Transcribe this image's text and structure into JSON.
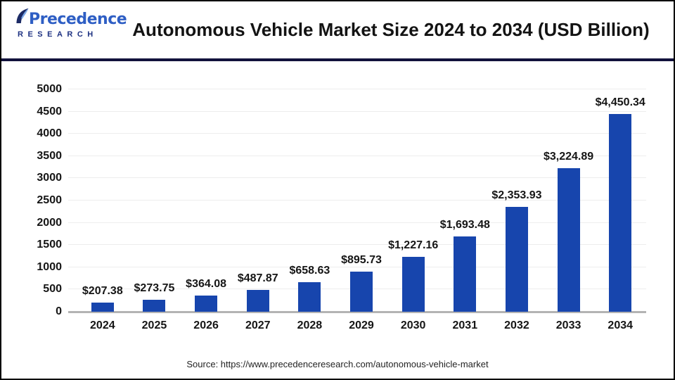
{
  "header": {
    "logo": {
      "brand": "Precedence",
      "sub": "RESEARCH"
    },
    "title": "Autonomous Vehicle Market Size 2024 to 2034 (USD Billion)"
  },
  "chart_data": {
    "type": "bar",
    "title": "Autonomous Vehicle Market Size 2024 to 2034 (USD Billion)",
    "categories": [
      "2024",
      "2025",
      "2026",
      "2027",
      "2028",
      "2029",
      "2030",
      "2031",
      "2032",
      "2033",
      "2034"
    ],
    "values": [
      207.38,
      273.75,
      364.08,
      487.87,
      658.63,
      895.73,
      1227.16,
      1693.48,
      2353.93,
      3224.89,
      4450.34
    ],
    "value_labels": [
      "$207.38",
      "$273.75",
      "$364.08",
      "$487.87",
      "$658.63",
      "$895.73",
      "$1,227.16",
      "$1,693.48",
      "$2,353.93",
      "$3,224.89",
      "$4,450.34"
    ],
    "xlabel": "",
    "ylabel": "",
    "ylim": [
      0,
      5000
    ],
    "yticks": [
      0,
      500,
      1000,
      1500,
      2000,
      2500,
      3000,
      3500,
      4000,
      4500,
      5000
    ],
    "grid": true,
    "legend": false,
    "bar_color": "#1745ad"
  },
  "footer": {
    "source": "Source: https://www.precedenceresearch.com/autonomous-vehicle-market"
  },
  "colors": {
    "bar": "#1745ad",
    "divider": "#12123c",
    "brand_blue": "#2e5ec4",
    "brand_navy": "#1e3282",
    "grid": "#ededed",
    "axis_line": "#b3b3b3",
    "border": "#000000"
  }
}
